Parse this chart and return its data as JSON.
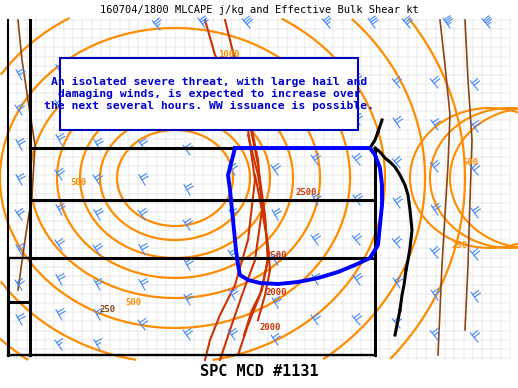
{
  "title_top": "160704/1800 MLCAPE j/kg and Effective Bulk Shear kt",
  "title_bottom": "SPC MCD #1131",
  "text_box": "An isolated severe threat, with large hail and\ndamaging winds, is expected to increase over\nthe next several hours. WW issuance is possible.",
  "bg_color": "#ffffff",
  "orange_color": "#FF8C00",
  "dark_orange_color": "#B8860B",
  "red_color": "#CC3300",
  "brown_color": "#8B4513",
  "blue_color": "#0000FF",
  "black_color": "#000000",
  "county_color": "#b0b0b0",
  "wind_color": "#4488FF",
  "text_blue": "#0000CC",
  "figsize": [
    5.18,
    3.88
  ],
  "dpi": 100
}
